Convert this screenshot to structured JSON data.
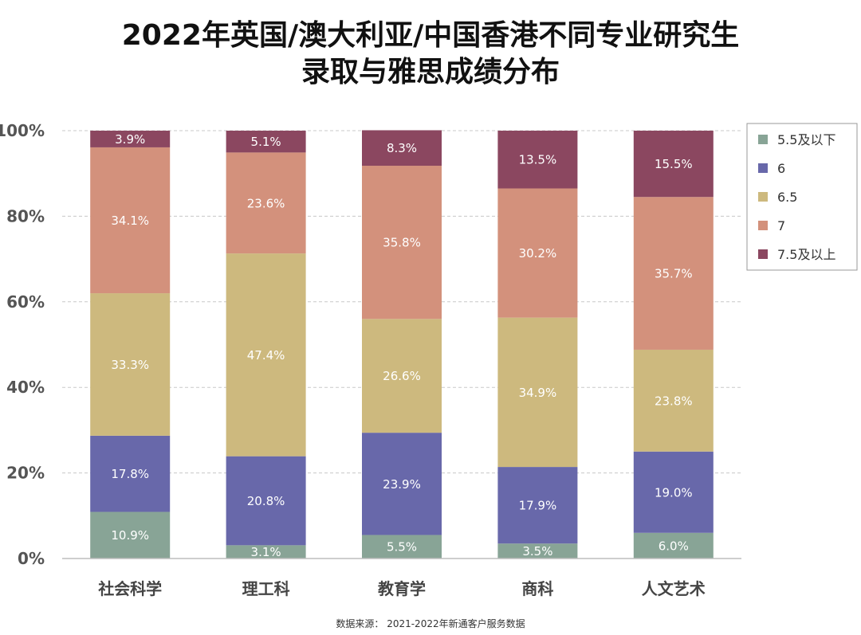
{
  "title_line1": "2022年英国/澳大利亚/中国香港不同专业研究生",
  "title_line2": "录取与雅思成绩分布",
  "source": "数据来源： 2021-2022年新通客户服务数据",
  "chart_data": {
    "type": "bar",
    "stacked": true,
    "percent_stacked": true,
    "title": "2022年英国/澳大利亚/中国香港不同专业研究生录取与雅思成绩分布",
    "xlabel": "",
    "ylabel": "",
    "ylim": [
      0,
      100
    ],
    "y_ticks": [
      "0%",
      "20%",
      "40%",
      "60%",
      "80%",
      "100%"
    ],
    "y_tick_values": [
      0,
      20,
      40,
      60,
      80,
      100
    ],
    "grid": true,
    "legend_position": "right-top",
    "categories": [
      "社会科学",
      "理工科",
      "教育学",
      "商科",
      "人文艺术"
    ],
    "series": [
      {
        "name": "5.5及以下",
        "color": "#88a496",
        "values": [
          10.9,
          3.1,
          5.5,
          3.5,
          6.0
        ],
        "labels": [
          "10.9%",
          "3.1%",
          "5.5%",
          "3.5%",
          "6.0%"
        ]
      },
      {
        "name": "6",
        "color": "#6868aa",
        "values": [
          17.8,
          20.8,
          23.9,
          17.9,
          19.0
        ],
        "labels": [
          "17.8%",
          "20.8%",
          "23.9%",
          "17.9%",
          "19.0%"
        ]
      },
      {
        "name": "6.5",
        "color": "#cdb97e",
        "values": [
          33.3,
          47.4,
          26.6,
          34.9,
          23.8
        ],
        "labels": [
          "33.3%",
          "47.4%",
          "26.6%",
          "34.9%",
          "23.8%"
        ]
      },
      {
        "name": "7",
        "color": "#d3917c",
        "values": [
          34.1,
          23.6,
          35.8,
          30.2,
          35.7
        ],
        "labels": [
          "34.1%",
          "23.6%",
          "35.8%",
          "30.2%",
          "35.7%"
        ]
      },
      {
        "name": "7.5及以上",
        "color": "#8b4760",
        "values": [
          3.9,
          5.1,
          8.3,
          13.5,
          15.5
        ],
        "labels": [
          "3.9%",
          "5.1%",
          "8.3%",
          "13.5%",
          "15.5%"
        ]
      }
    ]
  }
}
